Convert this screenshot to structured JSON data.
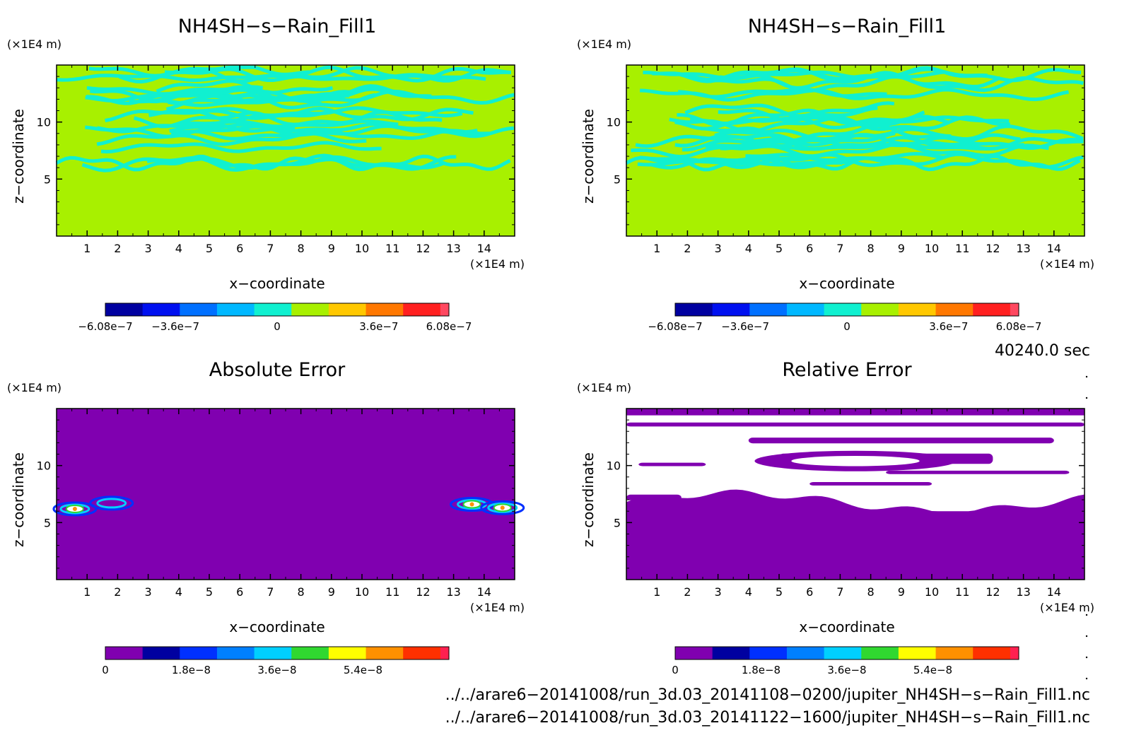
{
  "chart_data": [
    {
      "type": "heatmap",
      "title": "NH4SH−s−Rain_Fill1",
      "xlabel": "x−coordinate",
      "ylabel": "z−coordinate",
      "x_unit": "(×1E4 m)",
      "y_unit": "(×1E4 m)",
      "xlim": [
        0,
        15
      ],
      "ylim": [
        0,
        15
      ],
      "x_ticks": [
        1,
        2,
        3,
        4,
        5,
        6,
        7,
        8,
        9,
        10,
        11,
        12,
        13,
        14
      ],
      "y_ticks": [
        5,
        10
      ],
      "colorbar": {
        "min": -6.08e-07,
        "max": 6.08e-07,
        "tick_values": [
          -6.08e-07,
          -3.6e-07,
          0,
          3.6e-07,
          6.08e-07
        ],
        "tick_labels": [
          "−6.08e−7",
          "−3.6e−7",
          "0",
          "3.6e−7",
          "6.08e−7"
        ],
        "colors": [
          "#0000a0",
          "#0010f0",
          "#0070ff",
          "#00b8ff",
          "#10f0d0",
          "#a8f000",
          "#ffc800",
          "#ff7800",
          "#ff2020",
          "#ff4860"
        ]
      },
      "field": {
        "base_color": "#a8f000",
        "band_color": "#10f0d0",
        "band_region_z": [
          6,
          15
        ],
        "dominant_value": 0
      }
    },
    {
      "type": "heatmap",
      "title": "NH4SH−s−Rain_Fill1",
      "xlabel": "x−coordinate",
      "ylabel": "z−coordinate",
      "x_unit": "(×1E4 m)",
      "y_unit": "(×1E4 m)",
      "xlim": [
        0,
        15
      ],
      "ylim": [
        0,
        15
      ],
      "x_ticks": [
        1,
        2,
        3,
        4,
        5,
        6,
        7,
        8,
        9,
        10,
        11,
        12,
        13,
        14
      ],
      "y_ticks": [
        5,
        10
      ],
      "colorbar": {
        "min": -6.08e-07,
        "max": 6.08e-07,
        "tick_values": [
          -6.08e-07,
          -3.6e-07,
          0,
          3.6e-07,
          6.08e-07
        ],
        "tick_labels": [
          "−6.08e−7",
          "−3.6e−7",
          "0",
          "3.6e−7",
          "6.08e−7"
        ],
        "colors": [
          "#0000a0",
          "#0010f0",
          "#0070ff",
          "#00b8ff",
          "#10f0d0",
          "#a8f000",
          "#ffc800",
          "#ff7800",
          "#ff2020",
          "#ff4860"
        ]
      },
      "field": {
        "base_color": "#a8f000",
        "band_color": "#10f0d0",
        "band_region_z": [
          6,
          15
        ],
        "dominant_value": 0
      }
    },
    {
      "type": "heatmap",
      "title": "Absolute Error",
      "xlabel": "x−coordinate",
      "ylabel": "z−coordinate",
      "x_unit": "(×1E4 m)",
      "y_unit": "(×1E4 m)",
      "xlim": [
        0,
        15
      ],
      "ylim": [
        0,
        15
      ],
      "x_ticks": [
        1,
        2,
        3,
        4,
        5,
        6,
        7,
        8,
        9,
        10,
        11,
        12,
        13,
        14
      ],
      "y_ticks": [
        5,
        10
      ],
      "colorbar": {
        "min": 0,
        "max": 7.2e-08,
        "tick_values": [
          0,
          1.8e-08,
          3.6e-08,
          5.4e-08
        ],
        "tick_labels": [
          "0",
          "1.8e−8",
          "3.6e−8",
          "5.4e−8"
        ],
        "colors": [
          "#8000b0",
          "#0000a0",
          "#0030ff",
          "#0080ff",
          "#00d0ff",
          "#30d830",
          "#ffff00",
          "#ff9000",
          "#ff3000",
          "#ff2050"
        ]
      },
      "field": {
        "base_color": "#8000b0",
        "dominant_value": 0,
        "spots": [
          {
            "x": 0.6,
            "z": 6.2,
            "kind": "hot"
          },
          {
            "x": 1.8,
            "z": 6.7,
            "kind": "cool"
          },
          {
            "x": 13.6,
            "z": 6.6,
            "kind": "hot"
          },
          {
            "x": 14.6,
            "z": 6.3,
            "kind": "hot"
          }
        ]
      }
    },
    {
      "type": "heatmap",
      "title": "Relative Error",
      "xlabel": "x−coordinate",
      "ylabel": "z−coordinate",
      "x_unit": "(×1E4 m)",
      "y_unit": "(×1E4 m)",
      "xlim": [
        0,
        15
      ],
      "ylim": [
        0,
        15
      ],
      "x_ticks": [
        1,
        2,
        3,
        4,
        5,
        6,
        7,
        8,
        9,
        10,
        11,
        12,
        13,
        14
      ],
      "y_ticks": [
        5,
        10
      ],
      "colorbar": {
        "min": 0,
        "max": 7.2e-08,
        "tick_values": [
          0,
          1.8e-08,
          3.6e-08,
          5.4e-08
        ],
        "tick_labels": [
          "0",
          "1.8e−8",
          "3.6e−8",
          "5.4e−8"
        ],
        "colors": [
          "#8000b0",
          "#0000a0",
          "#0030ff",
          "#0080ff",
          "#00d0ff",
          "#30d830",
          "#ffff00",
          "#ff9000",
          "#ff3000",
          "#ff2050"
        ]
      },
      "field": {
        "base_color": "#8000b0",
        "undefined_color": "#ffffff",
        "dominant_value": 0,
        "undefined_region_z": [
          6,
          15
        ]
      }
    }
  ],
  "time_label": "40240.0 sec",
  "file_paths": [
    "../../arare6−20141008/run_3d.03_20141108−0200/jupiter_NH4SH−s−Rain_Fill1.nc",
    "../../arare6−20141008/run_3d.03_20141122−1600/jupiter_NH4SH−s−Rain_Fill1.nc"
  ]
}
